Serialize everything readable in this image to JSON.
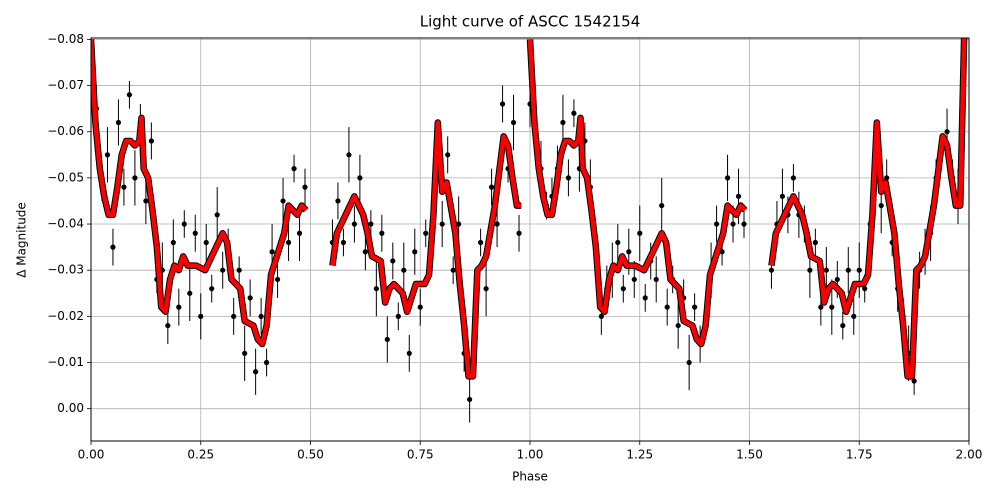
{
  "chart_data": {
    "type": "scatter",
    "title": "Light curve of ASCC 1542154",
    "xlabel": "Phase",
    "ylabel": "Δ Magnitude",
    "xlim": [
      0,
      2
    ],
    "ylim": [
      0.007,
      -0.0803
    ],
    "xticks": [
      {
        "value": 0,
        "label": "0.00"
      },
      {
        "value": 0.25,
        "label": "0.25"
      },
      {
        "value": 0.5,
        "label": "0.50"
      },
      {
        "value": 0.75,
        "label": "0.75"
      },
      {
        "value": 1,
        "label": "1.00"
      },
      {
        "value": 1.25,
        "label": "1.25"
      },
      {
        "value": 1.5,
        "label": "1.50"
      },
      {
        "value": 1.75,
        "label": "1.75"
      },
      {
        "value": 2,
        "label": "2.00"
      }
    ],
    "yticks": [
      {
        "value": -0.08,
        "label": "−0.08"
      },
      {
        "value": -0.07,
        "label": "−0.07"
      },
      {
        "value": -0.06,
        "label": "−0.06"
      },
      {
        "value": -0.05,
        "label": "−0.05"
      },
      {
        "value": -0.04,
        "label": "−0.04"
      },
      {
        "value": -0.03,
        "label": "−0.03"
      },
      {
        "value": -0.02,
        "label": "−0.02"
      },
      {
        "value": -0.01,
        "label": "−0.01"
      },
      {
        "value": 0,
        "label": "0.00"
      }
    ],
    "grid": true,
    "series": [
      {
        "type": "errorbar",
        "color": "#000000",
        "x": [
          0,
          0.0125,
          0.025,
          0.0375,
          0.05,
          0.0625,
          0.075,
          0.0875,
          0.1,
          0.1125,
          0.125,
          0.1375,
          0.15,
          0.1625,
          0.175,
          0.1875,
          0.2,
          0.2125,
          0.225,
          0.2375,
          0.25,
          0.2625,
          0.275,
          0.2875,
          0.3,
          0.3125,
          0.325,
          0.3375,
          0.35,
          0.3625,
          0.375,
          0.3875,
          0.4,
          0.4125,
          0.425,
          0.4375,
          0.45,
          0.4625,
          0.475,
          0.4875,
          0.55,
          0.5625,
          0.575,
          0.5875,
          0.6,
          0.6125,
          0.625,
          0.6375,
          0.65,
          0.6625,
          0.675,
          0.6875,
          0.7,
          0.7125,
          0.725,
          0.7375,
          0.75,
          0.7625,
          0.775,
          0.7875,
          0.8,
          0.8125,
          0.825,
          0.8375,
          0.85,
          0.8625,
          0.875,
          0.8875,
          0.9,
          0.9125,
          0.925,
          0.9375,
          0.95,
          0.9625,
          0.975,
          1,
          1.0125,
          1.025,
          1.0375,
          1.05,
          1.0625,
          1.075,
          1.0875,
          1.1,
          1.1125,
          1.125,
          1.1375,
          1.15,
          1.1625,
          1.175,
          1.1875,
          1.2,
          1.2125,
          1.225,
          1.2375,
          1.25,
          1.2625,
          1.275,
          1.2875,
          1.3,
          1.3125,
          1.325,
          1.3375,
          1.35,
          1.3625,
          1.375,
          1.3875,
          1.4,
          1.4125,
          1.425,
          1.4375,
          1.45,
          1.4625,
          1.475,
          1.4875,
          1.55,
          1.5625,
          1.575,
          1.5875,
          1.6,
          1.6125,
          1.625,
          1.6375,
          1.65,
          1.6625,
          1.675,
          1.6875,
          1.7,
          1.7125,
          1.725,
          1.7375,
          1.75,
          1.7625,
          1.775,
          1.7875,
          1.8,
          1.8125,
          1.825,
          1.8375,
          1.85,
          1.8625,
          1.875,
          1.8875,
          1.9,
          1.9125,
          1.925,
          1.9375,
          1.95,
          1.9625,
          1.975
        ],
        "values": [
          -0.072,
          -0.065,
          -0.048,
          -0.055,
          -0.035,
          -0.062,
          -0.048,
          -0.068,
          -0.05,
          -0.062,
          -0.045,
          -0.058,
          -0.028,
          -0.03,
          -0.018,
          -0.036,
          -0.022,
          -0.04,
          -0.025,
          -0.038,
          -0.02,
          -0.036,
          -0.026,
          -0.042,
          -0.03,
          -0.034,
          -0.02,
          -0.03,
          -0.012,
          -0.024,
          -0.008,
          -0.02,
          -0.01,
          -0.034,
          -0.028,
          -0.045,
          -0.036,
          -0.052,
          -0.038,
          -0.048,
          -0.036,
          -0.045,
          -0.036,
          -0.055,
          -0.04,
          -0.05,
          -0.034,
          -0.04,
          -0.026,
          -0.038,
          -0.015,
          -0.032,
          -0.02,
          -0.03,
          -0.012,
          -0.034,
          -0.022,
          -0.038,
          -0.035,
          -0.058,
          -0.04,
          -0.055,
          -0.03,
          -0.04,
          -0.012,
          -0.002,
          -0.018,
          -0.036,
          -0.026,
          -0.048,
          -0.04,
          -0.066,
          -0.052,
          -0.062,
          -0.038,
          -0.066,
          -0.058,
          -0.052,
          -0.044,
          -0.046,
          -0.052,
          -0.062,
          -0.05,
          -0.064,
          -0.052,
          -0.058,
          -0.048,
          -0.036,
          -0.02,
          -0.026,
          -0.03,
          -0.036,
          -0.026,
          -0.034,
          -0.028,
          -0.038,
          -0.024,
          -0.032,
          -0.028,
          -0.044,
          -0.022,
          -0.028,
          -0.018,
          -0.024,
          -0.01,
          -0.022,
          -0.014,
          -0.02,
          -0.03,
          -0.04,
          -0.034,
          -0.05,
          -0.04,
          -0.046,
          -0.04,
          -0.03,
          -0.04,
          -0.046,
          -0.042,
          -0.05,
          -0.042,
          -0.04,
          -0.03,
          -0.036,
          -0.022,
          -0.03,
          -0.022,
          -0.028,
          -0.018,
          -0.03,
          -0.02,
          -0.03,
          -0.026,
          -0.04,
          -0.05,
          -0.044,
          -0.05,
          -0.036,
          -0.026,
          -0.02,
          -0.012,
          -0.006,
          -0.03,
          -0.034,
          -0.038,
          -0.05,
          -0.056,
          -0.06,
          -0.05,
          -0.046
        ],
        "errors": [
          0.004,
          0.005,
          0.003,
          0.006,
          0.004,
          0.005,
          0.004,
          0.003,
          0.006,
          0.004,
          0.005,
          0.004,
          0.003,
          0.006,
          0.004,
          0.005,
          0.004,
          0.003,
          0.006,
          0.004,
          0.005,
          0.004,
          0.003,
          0.006,
          0.004,
          0.005,
          0.004,
          0.003,
          0.006,
          0.004,
          0.005,
          0.004,
          0.003,
          0.006,
          0.004,
          0.005,
          0.004,
          0.003,
          0.006,
          0.004,
          0.005,
          0.004,
          0.003,
          0.006,
          0.004,
          0.005,
          0.004,
          0.003,
          0.006,
          0.004,
          0.005,
          0.004,
          0.003,
          0.006,
          0.004,
          0.005,
          0.004,
          0.003,
          0.006,
          0.004,
          0.005,
          0.004,
          0.003,
          0.006,
          0.004,
          0.005,
          0.004,
          0.003,
          0.006,
          0.004,
          0.005,
          0.004,
          0.003,
          0.006,
          0.004,
          0.005,
          0.004,
          0.006,
          0.003,
          0.004,
          0.005,
          0.006,
          0.004,
          0.003,
          0.005,
          0.004,
          0.006,
          0.003,
          0.004,
          0.005,
          0.006,
          0.004,
          0.003,
          0.005,
          0.004,
          0.006,
          0.003,
          0.004,
          0.005,
          0.006,
          0.004,
          0.003,
          0.005,
          0.004,
          0.006,
          0.003,
          0.004,
          0.005,
          0.006,
          0.004,
          0.003,
          0.005,
          0.004,
          0.006,
          0.003,
          0.004,
          0.005,
          0.006,
          0.004,
          0.003,
          0.005,
          0.004,
          0.006,
          0.003,
          0.004,
          0.005,
          0.006,
          0.004,
          0.003,
          0.005,
          0.004,
          0.006,
          0.003,
          0.004,
          0.005,
          0.006,
          0.004,
          0.003,
          0.005,
          0.004,
          0.006,
          0.003,
          0.004,
          0.005,
          0.006,
          0.004,
          0.003,
          0.005,
          0.004,
          0.006
        ]
      },
      {
        "type": "line",
        "color": "#ff0000",
        "x": [
          0,
          0.01,
          0.02,
          0.03,
          0.04,
          0.05,
          0.06,
          0.07,
          0.08,
          0.09,
          0.1,
          0.11,
          0.115,
          0.12,
          0.13,
          0.14,
          0.15,
          0.16,
          0.17,
          0.18,
          0.19,
          0.2,
          0.21,
          0.22,
          0.24,
          0.26,
          0.28,
          0.3,
          0.31,
          0.32,
          0.34,
          0.35,
          0.37,
          0.38,
          0.39,
          0.4,
          0.41,
          0.42,
          0.44,
          0.45,
          0.47,
          0.48,
          0.49,
          0.5,
          0.55,
          0.56,
          0.58,
          0.6,
          0.62,
          0.63,
          0.64,
          0.66,
          0.67,
          0.68,
          0.69,
          0.71,
          0.72,
          0.74,
          0.76,
          0.77,
          0.78,
          0.79,
          0.8,
          0.81,
          0.83,
          0.84,
          0.85,
          0.86,
          0.87,
          0.88,
          0.89,
          0.9,
          0.92,
          0.94,
          0.95,
          0.96,
          0.97,
          0.98,
          0.985,
          1,
          1.01,
          1.02,
          1.03,
          1.04,
          1.05,
          1.06,
          1.07,
          1.08,
          1.09,
          1.1,
          1.11,
          1.115,
          1.12,
          1.13,
          1.14,
          1.15,
          1.16,
          1.17,
          1.18,
          1.19,
          1.2,
          1.21,
          1.22,
          1.24,
          1.26,
          1.28,
          1.3,
          1.31,
          1.32,
          1.34,
          1.35,
          1.37,
          1.38,
          1.39,
          1.4,
          1.41,
          1.42,
          1.44,
          1.45,
          1.47,
          1.48,
          1.49,
          1.5,
          1.55,
          1.56,
          1.58,
          1.6,
          1.62,
          1.63,
          1.64,
          1.66,
          1.67,
          1.68,
          1.69,
          1.71,
          1.72,
          1.74,
          1.76,
          1.77,
          1.78,
          1.79,
          1.8,
          1.81,
          1.83,
          1.84,
          1.85,
          1.86,
          1.87,
          1.88,
          1.89,
          1.9,
          1.92,
          1.94,
          1.95,
          1.96,
          1.97,
          1.98,
          1.99
        ],
        "values": [
          -0.08,
          -0.062,
          -0.052,
          -0.046,
          -0.042,
          -0.042,
          -0.048,
          -0.055,
          -0.058,
          -0.058,
          -0.057,
          -0.058,
          -0.063,
          -0.052,
          -0.05,
          -0.043,
          -0.035,
          -0.022,
          -0.021,
          -0.028,
          -0.031,
          -0.03,
          -0.033,
          -0.031,
          -0.031,
          -0.03,
          -0.034,
          -0.038,
          -0.036,
          -0.028,
          -0.026,
          -0.019,
          -0.018,
          -0.015,
          -0.014,
          -0.018,
          -0.029,
          -0.032,
          -0.038,
          -0.044,
          -0.042,
          -0.044,
          -0.043,
          null,
          -0.031,
          -0.038,
          -0.042,
          -0.046,
          -0.042,
          -0.038,
          -0.033,
          -0.032,
          -0.023,
          -0.026,
          -0.027,
          -0.025,
          -0.021,
          -0.027,
          -0.027,
          -0.029,
          -0.042,
          -0.062,
          -0.047,
          -0.049,
          -0.038,
          -0.027,
          -0.018,
          -0.007,
          -0.007,
          -0.03,
          -0.031,
          -0.033,
          -0.044,
          -0.059,
          -0.057,
          -0.05,
          -0.044,
          -0.044,
          null,
          -0.08,
          -0.062,
          -0.052,
          -0.046,
          -0.042,
          -0.042,
          -0.048,
          -0.055,
          -0.058,
          -0.058,
          -0.057,
          -0.058,
          -0.063,
          -0.052,
          -0.05,
          -0.043,
          -0.035,
          -0.022,
          -0.021,
          -0.028,
          -0.031,
          -0.03,
          -0.033,
          -0.031,
          -0.031,
          -0.03,
          -0.034,
          -0.038,
          -0.036,
          -0.028,
          -0.026,
          -0.019,
          -0.018,
          -0.015,
          -0.014,
          -0.018,
          -0.029,
          -0.032,
          -0.038,
          -0.044,
          -0.042,
          -0.044,
          -0.043,
          null,
          -0.031,
          -0.038,
          -0.042,
          -0.046,
          -0.042,
          -0.038,
          -0.033,
          -0.032,
          -0.023,
          -0.026,
          -0.027,
          -0.025,
          -0.021,
          -0.027,
          -0.027,
          -0.029,
          -0.042,
          -0.062,
          -0.047,
          -0.049,
          -0.038,
          -0.027,
          -0.018,
          -0.007,
          -0.007,
          -0.03,
          -0.031,
          -0.033,
          -0.044,
          -0.059,
          -0.057,
          -0.05,
          -0.044,
          -0.044,
          -0.085
        ]
      }
    ]
  }
}
